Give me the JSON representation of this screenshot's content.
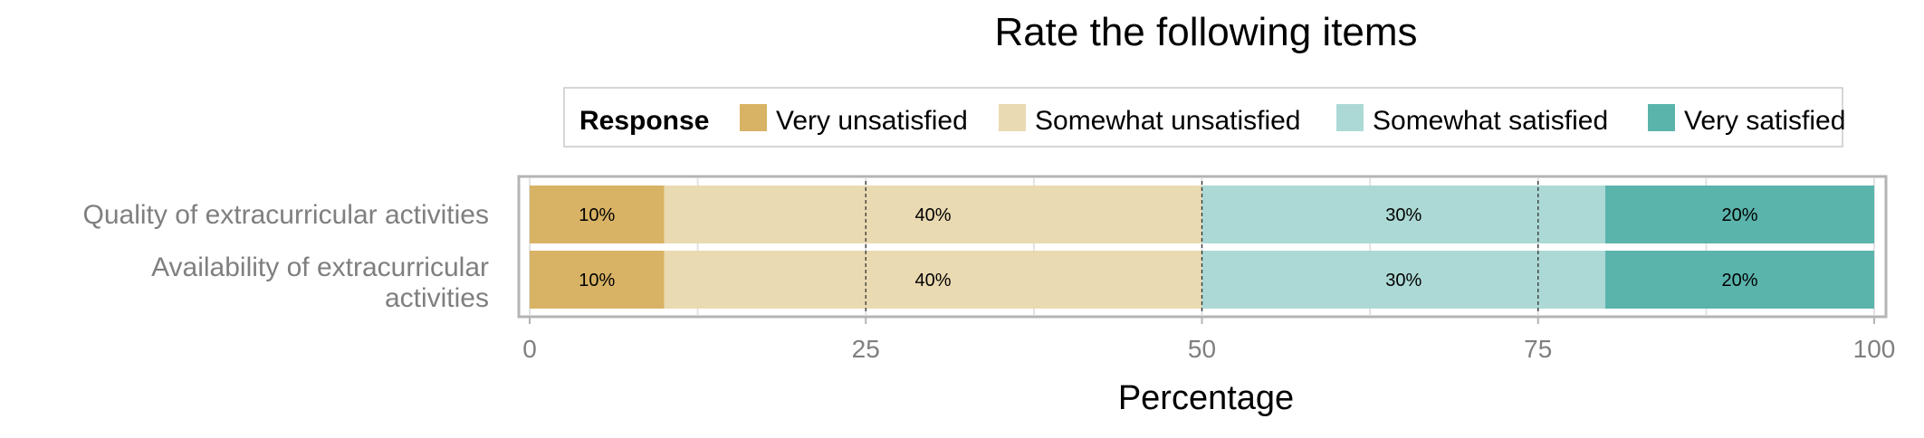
{
  "chart_data": {
    "type": "bar",
    "orientation": "horizontal",
    "stacked": true,
    "title": "Rate the following items",
    "xlabel": "Percentage",
    "ylabel": "",
    "xlim": [
      0,
      100
    ],
    "xticks": [
      0,
      25,
      50,
      75,
      100
    ],
    "categories": [
      "Quality of extracurricular activities",
      "Availability of extracurricular activities"
    ],
    "legend": {
      "title": "Response",
      "placement": "top"
    },
    "series": [
      {
        "name": "Very unsatisfied",
        "color": "#D8B365",
        "values": [
          10,
          10
        ],
        "labels": [
          "10%",
          "10%"
        ]
      },
      {
        "name": "Somewhat unsatisfied",
        "color": "#EADAB2",
        "values": [
          40,
          40
        ],
        "labels": [
          "40%",
          "40%"
        ]
      },
      {
        "name": "Somewhat satisfied",
        "color": "#ACD9D5",
        "values": [
          30,
          30
        ],
        "labels": [
          "30%",
          "30%"
        ]
      },
      {
        "name": "Very satisfied",
        "color": "#5AB4AC",
        "values": [
          20,
          20
        ],
        "labels": [
          "20%",
          "20%"
        ]
      }
    ],
    "grid": true
  }
}
